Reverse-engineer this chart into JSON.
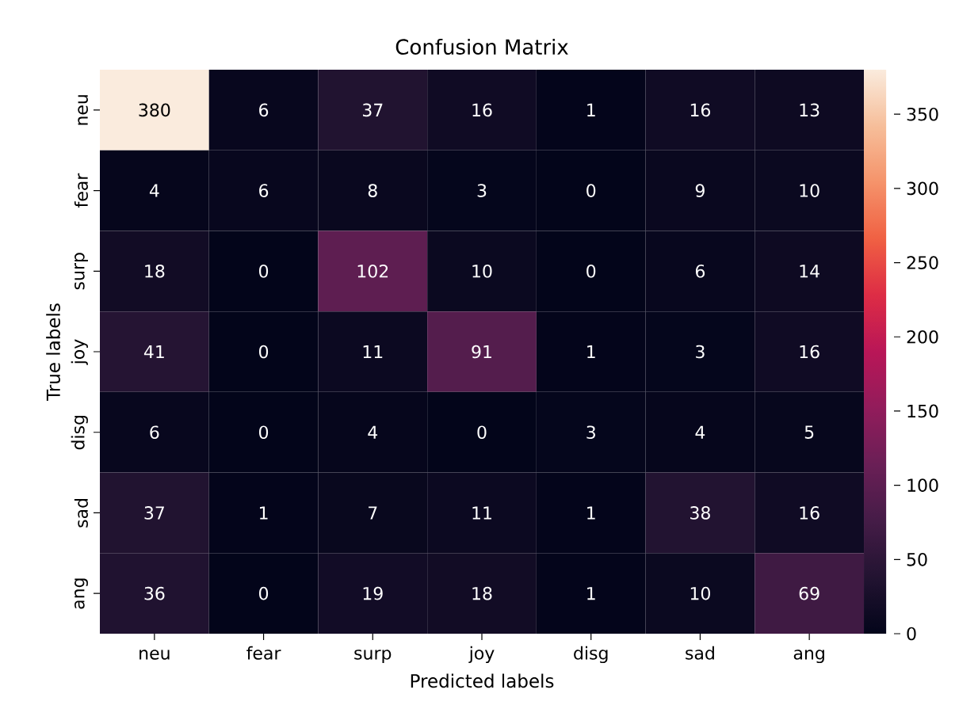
{
  "chart_data": {
    "type": "heatmap",
    "title": "Confusion Matrix",
    "xlabel": "Predicted labels",
    "ylabel": "True labels",
    "categories": [
      "neu",
      "fear",
      "surp",
      "joy",
      "disg",
      "sad",
      "ang"
    ],
    "y_categories": [
      "neu",
      "fear",
      "surp",
      "joy",
      "disg",
      "sad",
      "ang"
    ],
    "cells": [
      [
        380,
        6,
        37,
        16,
        1,
        16,
        13
      ],
      [
        4,
        6,
        8,
        3,
        0,
        9,
        10
      ],
      [
        18,
        0,
        102,
        10,
        0,
        6,
        14
      ],
      [
        41,
        0,
        11,
        91,
        1,
        3,
        16
      ],
      [
        6,
        0,
        4,
        0,
        3,
        4,
        5
      ],
      [
        37,
        1,
        7,
        11,
        1,
        38,
        16
      ],
      [
        36,
        0,
        19,
        18,
        1,
        10,
        69
      ]
    ],
    "clim": [
      0,
      380
    ],
    "cticks": [
      0,
      50,
      100,
      150,
      200,
      250,
      300,
      350
    ],
    "data_labels": true
  }
}
